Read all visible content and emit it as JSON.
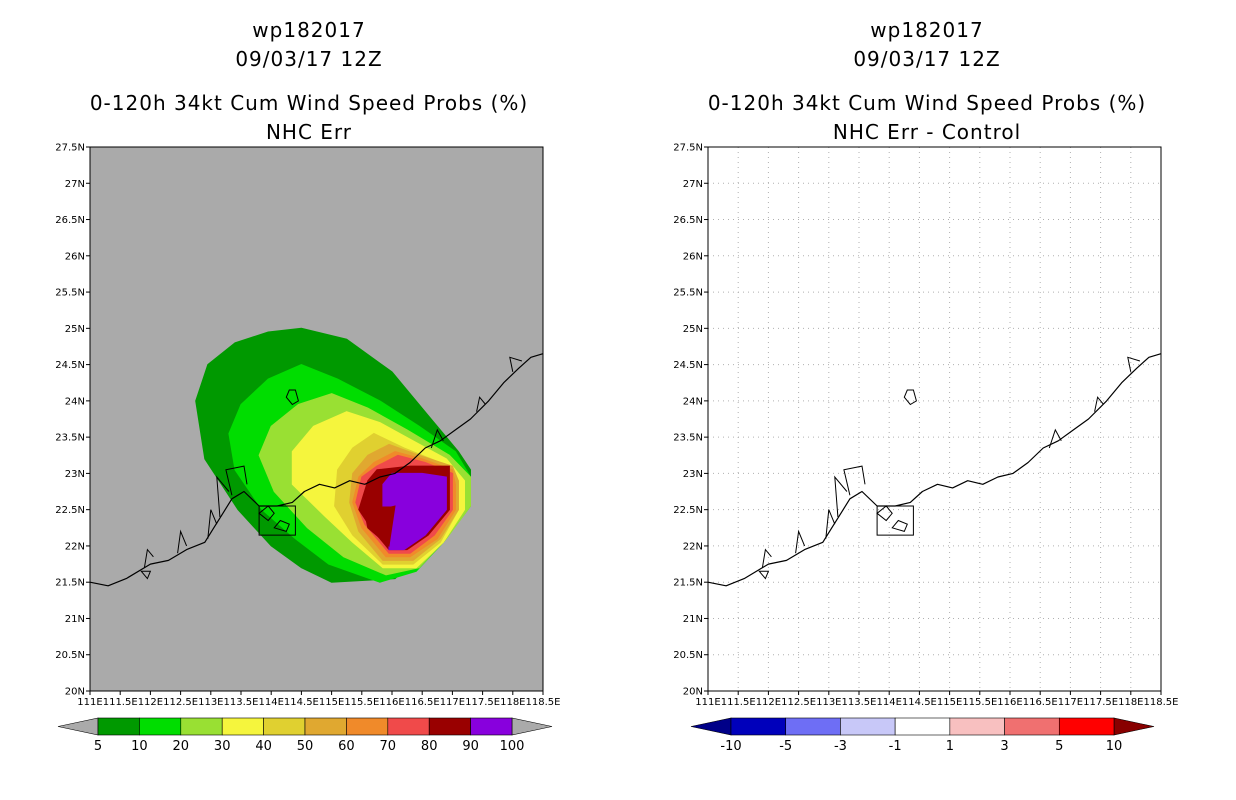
{
  "chart_data": [
    {
      "type": "heatmap",
      "name": "left-panel",
      "title_lines": [
        "wp182017",
        "09/03/17 12Z",
        "0-120h 34kt Cum Wind Speed Probs (%)",
        "NHC Err"
      ],
      "xlim": [
        111,
        118.5
      ],
      "ylim": [
        20,
        27.5
      ],
      "x_ticks": [
        "111E",
        "111.5E",
        "112E",
        "112.5E",
        "113E",
        "113.5E",
        "114E",
        "114.5E",
        "115E",
        "115.5E",
        "116E",
        "116.5E",
        "117E",
        "117.5E",
        "118E",
        "118.5E"
      ],
      "y_ticks": [
        "20N",
        "20.5N",
        "21N",
        "21.5N",
        "22N",
        "22.5N",
        "23N",
        "23.5N",
        "24N",
        "24.5N",
        "25N",
        "25.5N",
        "26N",
        "26.5N",
        "27N",
        "27.5N"
      ],
      "background": "#aaaaaa",
      "grid": false,
      "colorbar": {
        "labels": [
          "5",
          "10",
          "20",
          "30",
          "40",
          "50",
          "60",
          "70",
          "80",
          "90",
          "100"
        ],
        "colors": [
          "#009900",
          "#00dd00",
          "#99e033",
          "#f5f53d",
          "#e0d030",
          "#e0a830",
          "#f08a2a",
          "#f04a4a",
          "#990000",
          "#8800dd"
        ],
        "under_color": "#aaaaaa",
        "over_color": "#aaaaaa"
      },
      "contours": [
        {
          "level": 5,
          "color": "#009900",
          "points": [
            [
              113.95,
              24.95
            ],
            [
              114.5,
              25.0
            ],
            [
              115.25,
              24.85
            ],
            [
              116.0,
              24.4
            ],
            [
              116.6,
              23.8
            ],
            [
              117.1,
              23.3
            ],
            [
              117.3,
              23.05
            ],
            [
              117.3,
              22.65
            ],
            [
              116.9,
              22.2
            ],
            [
              116.45,
              21.85
            ],
            [
              116.05,
              21.55
            ],
            [
              115.0,
              21.5
            ],
            [
              114.5,
              21.7
            ],
            [
              114.0,
              22.0
            ],
            [
              113.45,
              22.5
            ],
            [
              112.9,
              23.2
            ],
            [
              112.75,
              24.0
            ],
            [
              112.95,
              24.5
            ],
            [
              113.4,
              24.8
            ]
          ]
        },
        {
          "level": 10,
          "color": "#00dd00",
          "points": [
            [
              114.5,
              24.5
            ],
            [
              115.1,
              24.3
            ],
            [
              115.8,
              24.0
            ],
            [
              116.45,
              23.65
            ],
            [
              117.05,
              23.3
            ],
            [
              117.3,
              22.95
            ],
            [
              117.3,
              22.55
            ],
            [
              116.85,
              22.05
            ],
            [
              116.4,
              21.65
            ],
            [
              115.8,
              21.5
            ],
            [
              114.95,
              21.75
            ],
            [
              114.4,
              22.1
            ],
            [
              113.85,
              22.5
            ],
            [
              113.4,
              23.05
            ],
            [
              113.3,
              23.55
            ],
            [
              113.5,
              23.95
            ],
            [
              113.95,
              24.3
            ]
          ]
        },
        {
          "level": 20,
          "color": "#99e033",
          "points": [
            [
              115.0,
              24.1
            ],
            [
              115.6,
              23.9
            ],
            [
              116.25,
              23.6
            ],
            [
              116.95,
              23.25
            ],
            [
              117.3,
              22.95
            ],
            [
              117.3,
              22.55
            ],
            [
              116.9,
              22.1
            ],
            [
              116.45,
              21.7
            ],
            [
              115.9,
              21.6
            ],
            [
              115.2,
              21.85
            ],
            [
              114.6,
              22.25
            ],
            [
              114.05,
              22.75
            ],
            [
              113.8,
              23.25
            ],
            [
              114.0,
              23.65
            ],
            [
              114.45,
              23.95
            ]
          ]
        },
        {
          "level": 30,
          "color": "#f5f53d",
          "points": [
            [
              115.25,
              23.85
            ],
            [
              115.8,
              23.7
            ],
            [
              116.35,
              23.45
            ],
            [
              116.9,
              23.2
            ],
            [
              117.2,
              22.9
            ],
            [
              117.2,
              22.5
            ],
            [
              116.85,
              22.05
            ],
            [
              116.4,
              21.7
            ],
            [
              115.85,
              21.7
            ],
            [
              115.35,
              22.05
            ],
            [
              114.9,
              22.4
            ],
            [
              114.35,
              22.85
            ],
            [
              114.35,
              23.3
            ],
            [
              114.7,
              23.65
            ]
          ]
        },
        {
          "level": 40,
          "color": "#e0d030",
          "points": [
            [
              115.7,
              23.55
            ],
            [
              116.2,
              23.35
            ],
            [
              116.8,
              23.15
            ],
            [
              117.1,
              22.9
            ],
            [
              117.1,
              22.5
            ],
            [
              116.8,
              22.05
            ],
            [
              116.35,
              21.75
            ],
            [
              115.85,
              21.75
            ],
            [
              115.35,
              22.15
            ],
            [
              115.05,
              22.55
            ],
            [
              115.1,
              23.05
            ],
            [
              115.35,
              23.35
            ]
          ]
        },
        {
          "level": 50,
          "color": "#e0a830",
          "points": [
            [
              115.95,
              23.4
            ],
            [
              116.45,
              23.25
            ],
            [
              117.0,
              23.1
            ],
            [
              117.1,
              22.9
            ],
            [
              117.1,
              22.5
            ],
            [
              116.8,
              22.1
            ],
            [
              116.35,
              21.8
            ],
            [
              115.85,
              21.8
            ],
            [
              115.45,
              22.2
            ],
            [
              115.3,
              22.6
            ],
            [
              115.35,
              23.0
            ],
            [
              115.6,
              23.25
            ]
          ]
        },
        {
          "level": 60,
          "color": "#f08a2a",
          "points": [
            [
              116.05,
              23.3
            ],
            [
              116.5,
              23.2
            ],
            [
              117.0,
              23.05
            ],
            [
              117.05,
              22.85
            ],
            [
              117.05,
              22.5
            ],
            [
              116.75,
              22.1
            ],
            [
              116.3,
              21.85
            ],
            [
              115.9,
              21.85
            ],
            [
              115.5,
              22.25
            ],
            [
              115.35,
              22.6
            ],
            [
              115.45,
              22.95
            ],
            [
              115.7,
              23.15
            ]
          ]
        },
        {
          "level": 70,
          "color": "#f04a4a",
          "points": [
            [
              116.1,
              23.25
            ],
            [
              116.55,
              23.15
            ],
            [
              117.0,
              23.0
            ],
            [
              117.0,
              22.5
            ],
            [
              116.7,
              22.15
            ],
            [
              116.3,
              21.9
            ],
            [
              115.95,
              21.9
            ],
            [
              115.55,
              22.3
            ],
            [
              115.4,
              22.6
            ],
            [
              115.5,
              22.95
            ],
            [
              115.75,
              23.1
            ]
          ]
        },
        {
          "level": 80,
          "color": "#990000",
          "points": [
            [
              115.75,
              23.05
            ],
            [
              116.3,
              23.1
            ],
            [
              116.95,
              23.1
            ],
            [
              116.95,
              22.5
            ],
            [
              116.6,
              22.15
            ],
            [
              116.25,
              21.95
            ],
            [
              115.95,
              21.95
            ],
            [
              115.65,
              22.25
            ],
            [
              115.45,
              22.5
            ],
            [
              115.6,
              22.9
            ]
          ]
        },
        {
          "level": 90,
          "color": "#8800dd",
          "points": [
            [
              116.0,
              23.0
            ],
            [
              116.5,
              23.0
            ],
            [
              116.9,
              22.95
            ],
            [
              116.9,
              22.5
            ],
            [
              116.55,
              22.15
            ],
            [
              116.2,
              21.95
            ],
            [
              115.95,
              21.95
            ],
            [
              115.95,
              22.15
            ],
            [
              116.05,
              22.55
            ],
            [
              115.85,
              22.55
            ],
            [
              115.85,
              22.85
            ]
          ]
        }
      ],
      "overlays": [
        {
          "level": 80,
          "color": "#990000",
          "points": [
            [
              115.55,
              22.45
            ],
            [
              116.05,
              22.55
            ],
            [
              115.95,
              22.0
            ],
            [
              115.6,
              22.25
            ]
          ]
        }
      ]
    },
    {
      "type": "heatmap",
      "name": "right-panel",
      "title_lines": [
        "wp182017",
        "09/03/17 12Z",
        "0-120h 34kt Cum Wind Speed Probs (%)",
        "NHC Err - Control"
      ],
      "xlim": [
        111,
        118.5
      ],
      "ylim": [
        20,
        27.5
      ],
      "x_ticks": [
        "111E",
        "111.5E",
        "112E",
        "112.5E",
        "113E",
        "113.5E",
        "114E",
        "114.5E",
        "115E",
        "115.5E",
        "116E",
        "116.5E",
        "117E",
        "117.5E",
        "118E",
        "118.5E"
      ],
      "y_ticks": [
        "20N",
        "20.5N",
        "21N",
        "21.5N",
        "22N",
        "22.5N",
        "23N",
        "23.5N",
        "24N",
        "24.5N",
        "25N",
        "25.5N",
        "26N",
        "26.5N",
        "27N",
        "27.5N"
      ],
      "background": "#ffffff",
      "grid": true,
      "colorbar": {
        "labels": [
          "-10",
          "-5",
          "-3",
          "-1",
          "1",
          "3",
          "5",
          "10"
        ],
        "colors": [
          "#0000bb",
          "#6e6ef5",
          "#c8c8f8",
          "#ffffff",
          "#f8c0c0",
          "#f07070",
          "#ff0000"
        ],
        "under_color": "#000088",
        "over_color": "#880000"
      },
      "contours": [],
      "overlays": []
    }
  ],
  "coastline": [
    [
      111.0,
      21.5
    ],
    [
      111.3,
      21.45
    ],
    [
      111.6,
      21.55
    ],
    [
      112.0,
      21.75
    ],
    [
      112.3,
      21.8
    ],
    [
      112.6,
      21.95
    ],
    [
      112.9,
      22.05
    ],
    [
      113.05,
      22.25
    ],
    [
      113.2,
      22.45
    ],
    [
      113.35,
      22.65
    ],
    [
      113.55,
      22.75
    ],
    [
      113.8,
      22.55
    ],
    [
      114.1,
      22.55
    ],
    [
      114.35,
      22.6
    ],
    [
      114.55,
      22.75
    ],
    [
      114.8,
      22.85
    ],
    [
      115.05,
      22.8
    ],
    [
      115.3,
      22.9
    ],
    [
      115.55,
      22.85
    ],
    [
      115.8,
      22.95
    ],
    [
      116.05,
      23.0
    ],
    [
      116.3,
      23.15
    ],
    [
      116.55,
      23.35
    ],
    [
      116.8,
      23.45
    ],
    [
      117.05,
      23.6
    ],
    [
      117.3,
      23.75
    ],
    [
      117.6,
      24.0
    ],
    [
      117.85,
      24.25
    ],
    [
      118.1,
      24.45
    ],
    [
      118.3,
      24.6
    ],
    [
      118.5,
      24.65
    ]
  ],
  "bays": [
    [
      [
        111.9,
        21.7
      ],
      [
        111.95,
        21.95
      ],
      [
        112.05,
        21.85
      ]
    ],
    [
      [
        112.45,
        21.9
      ],
      [
        112.5,
        22.2
      ],
      [
        112.6,
        22.0
      ]
    ],
    [
      [
        112.95,
        22.1
      ],
      [
        113.0,
        22.5
      ],
      [
        113.1,
        22.3
      ]
    ],
    [
      [
        113.15,
        22.4
      ],
      [
        113.1,
        22.95
      ],
      [
        113.3,
        22.75
      ]
    ],
    [
      [
        113.35,
        22.7
      ],
      [
        113.25,
        23.05
      ],
      [
        113.55,
        23.1
      ],
      [
        113.6,
        22.85
      ]
    ],
    [
      [
        116.65,
        23.35
      ],
      [
        116.75,
        23.6
      ],
      [
        116.85,
        23.45
      ]
    ],
    [
      [
        117.4,
        23.85
      ],
      [
        117.45,
        24.05
      ],
      [
        117.55,
        23.95
      ]
    ],
    [
      [
        118.0,
        24.4
      ],
      [
        117.95,
        24.6
      ],
      [
        118.15,
        24.55
      ]
    ]
  ],
  "islands": [
    [
      [
        114.25,
        24.05
      ],
      [
        114.35,
        23.95
      ],
      [
        114.45,
        24.0
      ],
      [
        114.4,
        24.15
      ],
      [
        114.3,
        24.15
      ]
    ],
    [
      [
        113.8,
        22.45
      ],
      [
        113.95,
        22.35
      ],
      [
        114.05,
        22.45
      ],
      [
        113.95,
        22.55
      ]
    ],
    [
      [
        114.05,
        22.25
      ],
      [
        114.25,
        22.2
      ],
      [
        114.3,
        22.3
      ],
      [
        114.15,
        22.35
      ]
    ],
    [
      [
        111.85,
        21.65
      ],
      [
        111.95,
        21.55
      ],
      [
        112.0,
        21.65
      ]
    ]
  ],
  "box": [
    [
      113.8,
      22.15
    ],
    [
      114.4,
      22.15
    ],
    [
      114.4,
      22.55
    ],
    [
      113.8,
      22.55
    ]
  ]
}
